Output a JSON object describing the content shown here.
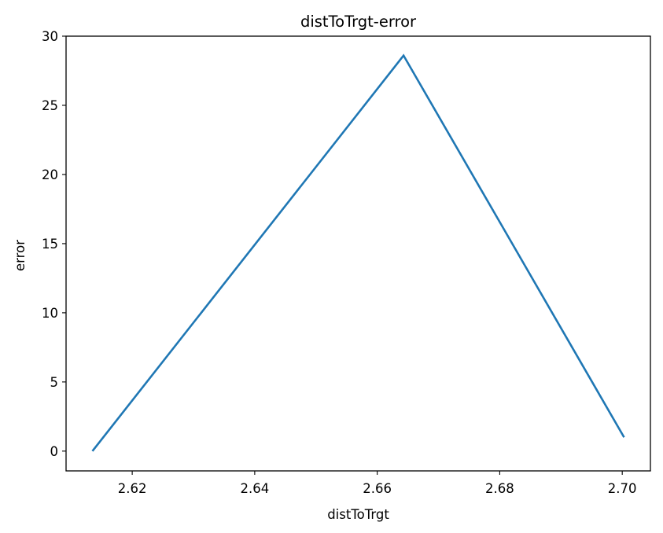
{
  "chart_data": {
    "type": "line",
    "title": "distToTrgt-error",
    "xlabel": "distToTrgt",
    "ylabel": "error",
    "xlim": [
      2.6092,
      2.7046
    ],
    "ylim": [
      -1.43,
      30.0
    ],
    "xticks": [
      2.62,
      2.64,
      2.66,
      2.68,
      2.7
    ],
    "xtick_labels": [
      "2.62",
      "2.64",
      "2.66",
      "2.68",
      "2.70"
    ],
    "yticks": [
      0,
      5,
      10,
      15,
      20,
      25,
      30
    ],
    "ytick_labels": [
      "0",
      "5",
      "10",
      "15",
      "20",
      "25",
      "30"
    ],
    "grid": false,
    "series": [
      {
        "color": "#1f77b4",
        "x": [
          2.6135,
          2.6643,
          2.7003
        ],
        "y": [
          0.0,
          28.6,
          1.0
        ]
      }
    ]
  }
}
